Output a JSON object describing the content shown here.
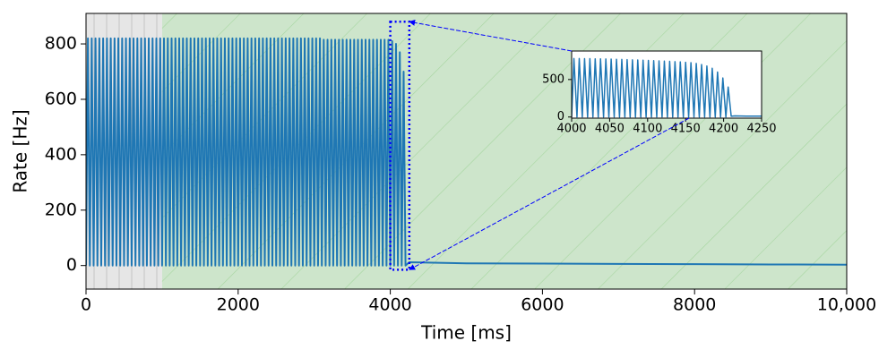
{
  "chart_data": [
    {
      "type": "line",
      "xlabel": "Time [ms]",
      "ylabel": "Rate [Hz]",
      "xlim": [
        0,
        10000
      ],
      "ylim": [
        -85,
        910
      ],
      "xticks": [
        0,
        2000,
        4000,
        6000,
        8000,
        {
          "value": 10000,
          "label": "10,000"
        }
      ],
      "yticks": [
        0,
        200,
        400,
        600,
        800
      ],
      "regions": [
        {
          "xlim": [
            0,
            1000
          ],
          "color": "#e6e6e6"
        },
        {
          "xlim": [
            1000,
            10000
          ],
          "color": "#cde5cb"
        }
      ],
      "series": [
        {
          "color": "#1f77b4",
          "x": [
            0,
            25,
            50,
            75,
            100,
            125,
            150,
            175,
            200,
            225,
            250,
            275,
            300,
            325,
            350,
            375,
            400,
            425,
            450,
            475,
            500,
            525,
            550,
            575,
            600,
            625,
            650,
            675,
            700,
            725,
            750,
            775,
            800,
            825,
            850,
            875,
            900,
            925,
            950,
            975,
            1000,
            1025,
            1050,
            1075,
            1100,
            1125,
            1150,
            1175,
            1200,
            1225,
            1250,
            1275,
            1300,
            1325,
            1350,
            1375,
            1400,
            1425,
            1450,
            1475,
            1500,
            1525,
            1550,
            1575,
            1600,
            1625,
            1650,
            1675,
            1700,
            1725,
            1750,
            1775,
            1800,
            1825,
            1850,
            1875,
            1900,
            1925,
            1950,
            1975,
            2000,
            2025,
            2050,
            2075,
            2100,
            2125,
            2150,
            2175,
            2200,
            2225,
            2250,
            2275,
            2300,
            2325,
            2350,
            2375,
            2400,
            2425,
            2450,
            2475,
            2500,
            2525,
            2550,
            2575,
            2600,
            2625,
            2650,
            2675,
            2700,
            2725,
            2750,
            2775,
            2800,
            2825,
            2850,
            2875,
            2900,
            2925,
            2950,
            2975,
            3000,
            3025,
            3050,
            3075,
            3100,
            3125,
            3150,
            3175,
            3200,
            3225,
            3250,
            3275,
            3300,
            3325,
            3350,
            3375,
            3400,
            3425,
            3450,
            3475,
            3500,
            3525,
            3550,
            3575,
            3600,
            3625,
            3650,
            3675,
            3700,
            3725,
            3750,
            3775,
            3800,
            3825,
            3850,
            3875,
            3900,
            3925,
            3950,
            3975,
            4000,
            4025,
            4050,
            4075,
            4100,
            4125,
            4150,
            4175,
            4200,
            4250,
            5000,
            6000,
            7000,
            8000,
            9000,
            10000
          ],
          "values": [
            0,
            820,
            0,
            820,
            0,
            820,
            0,
            820,
            0,
            820,
            0,
            820,
            0,
            820,
            0,
            820,
            0,
            820,
            0,
            820,
            0,
            820,
            0,
            820,
            0,
            820,
            0,
            820,
            0,
            820,
            0,
            820,
            0,
            820,
            0,
            820,
            0,
            820,
            0,
            820,
            0,
            820,
            0,
            820,
            0,
            820,
            0,
            820,
            0,
            820,
            0,
            820,
            0,
            820,
            0,
            820,
            0,
            820,
            0,
            820,
            0,
            820,
            0,
            820,
            0,
            820,
            0,
            820,
            0,
            820,
            0,
            820,
            0,
            820,
            0,
            820,
            0,
            820,
            0,
            820,
            0,
            820,
            0,
            820,
            0,
            820,
            0,
            820,
            0,
            820,
            0,
            820,
            0,
            820,
            0,
            820,
            0,
            820,
            0,
            820,
            0,
            820,
            0,
            820,
            0,
            820,
            0,
            820,
            0,
            820,
            0,
            820,
            0,
            820,
            0,
            820,
            0,
            820,
            0,
            820,
            0,
            820,
            0,
            820,
            0,
            815,
            0,
            815,
            0,
            815,
            0,
            815,
            0,
            815,
            0,
            815,
            0,
            815,
            0,
            815,
            0,
            815,
            0,
            815,
            0,
            815,
            0,
            815,
            0,
            815,
            0,
            815,
            0,
            815,
            0,
            815,
            0,
            815,
            0,
            815,
            0,
            810,
            0,
            800,
            0,
            770,
            0,
            700,
            0,
            12,
            8,
            7,
            6,
            5,
            4,
            3
          ]
        }
      ]
    },
    {
      "type": "line",
      "xlim": [
        4000,
        4250
      ],
      "ylim": [
        -15,
        880
      ],
      "xticks": [
        4000,
        4050,
        4100,
        4150,
        4200,
        4250
      ],
      "yticks": [
        0,
        500
      ],
      "series": [
        {
          "color": "#1f77b4",
          "x": [
            4000,
            4003,
            4007,
            4010,
            4014,
            4017,
            4021,
            4024,
            4028,
            4031,
            4035,
            4038,
            4042,
            4045,
            4049,
            4052,
            4056,
            4059,
            4063,
            4066,
            4070,
            4073,
            4077,
            4080,
            4084,
            4087,
            4091,
            4094,
            4098,
            4101,
            4105,
            4108,
            4112,
            4115,
            4119,
            4122,
            4126,
            4129,
            4133,
            4136,
            4140,
            4143,
            4147,
            4150,
            4154,
            4157,
            4161,
            4164,
            4168,
            4171,
            4175,
            4178,
            4182,
            4185,
            4189,
            4192,
            4196,
            4199,
            4203,
            4206,
            4210,
            4215,
            4230,
            4250
          ],
          "values": [
            0,
            780,
            0,
            780,
            0,
            778,
            0,
            778,
            0,
            776,
            0,
            775,
            0,
            774,
            0,
            772,
            0,
            770,
            0,
            768,
            0,
            765,
            0,
            762,
            0,
            760,
            0,
            758,
            0,
            755,
            0,
            752,
            0,
            748,
            0,
            745,
            0,
            742,
            0,
            738,
            0,
            735,
            0,
            730,
            0,
            725,
            0,
            715,
            0,
            700,
            0,
            680,
            0,
            650,
            0,
            600,
            0,
            520,
            0,
            400,
            10,
            15,
            12,
            12
          ]
        }
      ]
    }
  ]
}
